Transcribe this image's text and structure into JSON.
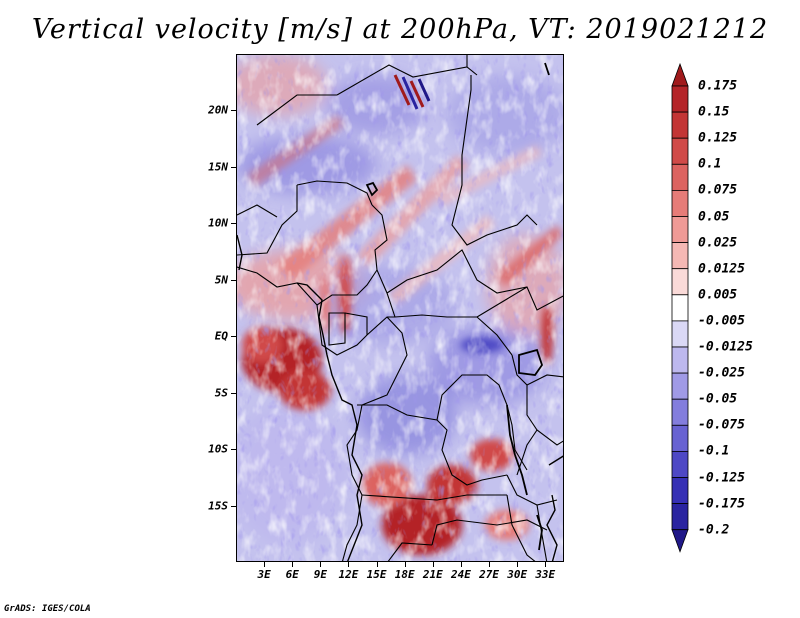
{
  "title": "Vertical velocity [m/s] at 200hPa, VT: 2019021212",
  "credit": "GrADS: IGES/COLA",
  "map": {
    "variable": "Vertical velocity",
    "units": "m/s",
    "level": "200hPa",
    "valid_time": "2019021212",
    "lat_range": [
      -20,
      25
    ],
    "lon_range": [
      0,
      35
    ],
    "lat_labels": [
      {
        "lat": 20,
        "text": "20N"
      },
      {
        "lat": 15,
        "text": "15N"
      },
      {
        "lat": 10,
        "text": "10N"
      },
      {
        "lat": 5,
        "text": "5N"
      },
      {
        "lat": 0,
        "text": "EQ"
      },
      {
        "lat": -5,
        "text": "5S"
      },
      {
        "lat": -10,
        "text": "10S"
      },
      {
        "lat": -15,
        "text": "15S"
      }
    ],
    "lon_labels": [
      {
        "lon": 3,
        "text": "3E"
      },
      {
        "lon": 6,
        "text": "6E"
      },
      {
        "lon": 9,
        "text": "9E"
      },
      {
        "lon": 12,
        "text": "12E"
      },
      {
        "lon": 15,
        "text": "15E"
      },
      {
        "lon": 18,
        "text": "18E"
      },
      {
        "lon": 21,
        "text": "21E"
      },
      {
        "lon": 24,
        "text": "24E"
      },
      {
        "lon": 27,
        "text": "27E"
      },
      {
        "lon": 30,
        "text": "30E"
      },
      {
        "lon": 33,
        "text": "33E"
      }
    ]
  },
  "colorbar": {
    "labels": [
      "0.175",
      "0.15",
      "0.125",
      "0.1",
      "0.075",
      "0.05",
      "0.025",
      "0.0125",
      "0.005",
      "-0.005",
      "-0.0125",
      "-0.025",
      "-0.05",
      "-0.075",
      "-0.1",
      "-0.125",
      "-0.175",
      "-0.2"
    ],
    "colors": [
      "#a01a1c",
      "#b42428",
      "#c33535",
      "#d04a48",
      "#dc6360",
      "#e67c78",
      "#ef9a96",
      "#f5b8b4",
      "#fadad8",
      "#ffffff",
      "#dad8f5",
      "#bdb8ee",
      "#a09ae6",
      "#837ddd",
      "#6862d2",
      "#4e48c5",
      "#3630b5",
      "#2a24a0",
      "#201888"
    ]
  }
}
